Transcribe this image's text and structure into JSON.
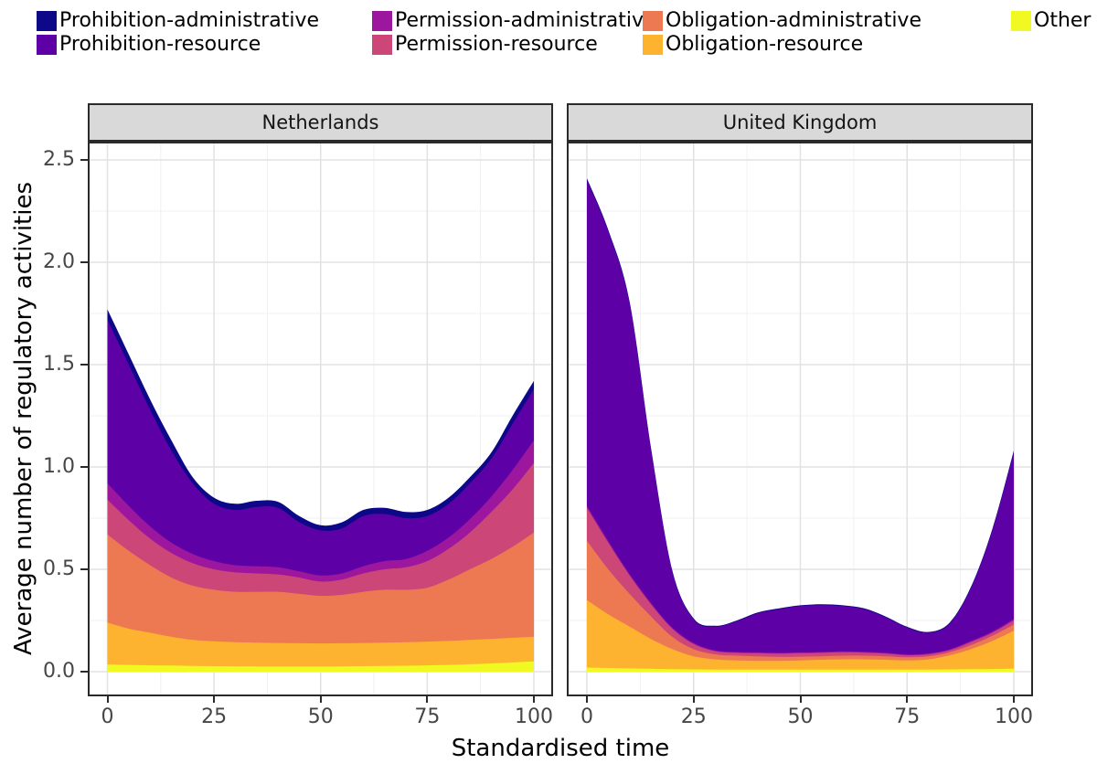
{
  "colors": {
    "Prohibition-administrative": "#0d0887",
    "Prohibition-resource": "#5d01a6",
    "Permission-administrative": "#9c179e",
    "Permission-resource": "#cc4678",
    "Obligation-administrative": "#ed7953",
    "Obligation-resource": "#fdb32f",
    "Other": "#f0f921"
  },
  "legend": {
    "rows": [
      [
        "Prohibition-administrative",
        "Permission-administrative",
        "Obligation-administrative",
        "Other"
      ],
      [
        "Prohibition-resource",
        "Permission-resource",
        "Obligation-resource"
      ]
    ]
  },
  "axes": {
    "x": {
      "title": "Standardised time",
      "range": [
        0,
        100
      ],
      "ticks": [
        {
          "value": 0,
          "label": "0"
        },
        {
          "value": 25,
          "label": "25"
        },
        {
          "value": 50,
          "label": "50"
        },
        {
          "value": 75,
          "label": "75"
        },
        {
          "value": 100,
          "label": "100"
        }
      ],
      "minor": [
        12.5,
        37.5,
        62.5,
        87.5
      ]
    },
    "y": {
      "title": "Average number of regulatory activities",
      "range": [
        0,
        2.59
      ],
      "ticks": [
        {
          "value": 0.0,
          "label": "0.0"
        },
        {
          "value": 0.5,
          "label": "0.5"
        },
        {
          "value": 1.0,
          "label": "1.0"
        },
        {
          "value": 1.5,
          "label": "1.5"
        },
        {
          "value": 2.0,
          "label": "2.0"
        },
        {
          "value": 2.5,
          "label": "2.5"
        }
      ],
      "minor": [
        0.25,
        0.75,
        1.25,
        1.75,
        2.25
      ]
    }
  },
  "chart_data": {
    "type": "area",
    "stacked": true,
    "grid": true,
    "legend_position": "top",
    "x": [
      0,
      5,
      10,
      15,
      20,
      25,
      30,
      35,
      40,
      45,
      50,
      55,
      60,
      65,
      70,
      75,
      80,
      85,
      90,
      95,
      100
    ],
    "stack_order_bottom_to_top": [
      "Other",
      "Obligation-resource",
      "Obligation-administrative",
      "Permission-resource",
      "Permission-administrative",
      "Prohibition-resource",
      "Prohibition-administrative"
    ],
    "facets": [
      {
        "name": "Netherlands",
        "series": [
          {
            "name": "Other",
            "values": [
              0.035,
              0.033,
              0.031,
              0.03,
              0.028,
              0.027,
              0.026,
              0.026,
              0.025,
              0.025,
              0.025,
              0.026,
              0.027,
              0.028,
              0.029,
              0.031,
              0.033,
              0.036,
              0.04,
              0.045,
              0.05
            ]
          },
          {
            "name": "Obligation-resource",
            "values": [
              0.205,
              0.177,
              0.159,
              0.14,
              0.127,
              0.121,
              0.118,
              0.116,
              0.115,
              0.114,
              0.113,
              0.113,
              0.113,
              0.114,
              0.115,
              0.116,
              0.117,
              0.119,
              0.12,
              0.12,
              0.12
            ]
          },
          {
            "name": "Obligation-administrative",
            "values": [
              0.43,
              0.38,
              0.33,
              0.29,
              0.265,
              0.252,
              0.246,
              0.248,
              0.25,
              0.241,
              0.232,
              0.236,
              0.25,
              0.258,
              0.256,
              0.263,
              0.3,
              0.345,
              0.39,
              0.445,
              0.51
            ]
          },
          {
            "name": "Permission-resource",
            "values": [
              0.17,
              0.15,
              0.13,
              0.12,
              0.11,
              0.1,
              0.095,
              0.09,
              0.085,
              0.08,
              0.07,
              0.075,
              0.09,
              0.1,
              0.11,
              0.13,
              0.15,
              0.18,
              0.23,
              0.28,
              0.34
            ]
          },
          {
            "name": "Permission-administrative",
            "values": [
              0.08,
              0.07,
              0.06,
              0.05,
              0.045,
              0.04,
              0.035,
              0.035,
              0.035,
              0.03,
              0.03,
              0.03,
              0.035,
              0.04,
              0.04,
              0.05,
              0.055,
              0.065,
              0.075,
              0.095,
              0.11
            ]
          },
          {
            "name": "Prohibition-resource",
            "values": [
              0.8,
              0.69,
              0.57,
              0.45,
              0.345,
              0.28,
              0.27,
              0.29,
              0.29,
              0.24,
              0.22,
              0.22,
              0.245,
              0.23,
              0.2,
              0.17,
              0.165,
              0.175,
              0.185,
              0.225,
              0.25
            ]
          },
          {
            "name": "Prohibition-administrative",
            "values": [
              0.05,
              0.05,
              0.05,
              0.05,
              0.03,
              0.03,
              0.03,
              0.03,
              0.03,
              0.03,
              0.025,
              0.03,
              0.03,
              0.03,
              0.03,
              0.03,
              0.03,
              0.03,
              0.03,
              0.04,
              0.04
            ]
          }
        ]
      },
      {
        "name": "United Kingdom",
        "series": [
          {
            "name": "Other",
            "values": [
              0.02,
              0.018,
              0.016,
              0.014,
              0.012,
              0.011,
              0.01,
              0.01,
              0.01,
              0.01,
              0.01,
              0.01,
              0.01,
              0.01,
              0.01,
              0.01,
              0.01,
              0.011,
              0.012,
              0.013,
              0.015
            ]
          },
          {
            "name": "Obligation-resource",
            "values": [
              0.33,
              0.262,
              0.204,
              0.146,
              0.098,
              0.064,
              0.05,
              0.045,
              0.043,
              0.043,
              0.045,
              0.048,
              0.05,
              0.05,
              0.048,
              0.045,
              0.05,
              0.069,
              0.098,
              0.137,
              0.185
            ]
          },
          {
            "name": "Obligation-administrative",
            "values": [
              0.29,
              0.22,
              0.16,
              0.11,
              0.06,
              0.035,
              0.025,
              0.023,
              0.022,
              0.019,
              0.018,
              0.017,
              0.018,
              0.018,
              0.017,
              0.015,
              0.015,
              0.015,
              0.02,
              0.025,
              0.03
            ]
          },
          {
            "name": "Permission-resource",
            "values": [
              0.16,
              0.13,
              0.09,
              0.06,
              0.04,
              0.025,
              0.015,
              0.014,
              0.015,
              0.016,
              0.017,
              0.017,
              0.017,
              0.015,
              0.013,
              0.01,
              0.01,
              0.01,
              0.015,
              0.015,
              0.02
            ]
          },
          {
            "name": "Permission-administrative",
            "values": [
              0.01,
              0.008,
              0.007,
              0.006,
              0.005,
              0.005,
              0.004,
              0.004,
              0.004,
              0.004,
              0.004,
              0.004,
              0.004,
              0.004,
              0.004,
              0.004,
              0.004,
              0.004,
              0.005,
              0.006,
              0.007
            ]
          },
          {
            "name": "Prohibition-resource",
            "values": [
              1.59,
              1.512,
              1.323,
              0.754,
              0.275,
              0.115,
              0.116,
              0.149,
              0.191,
              0.213,
              0.226,
              0.229,
              0.221,
              0.208,
              0.173,
              0.131,
              0.101,
              0.126,
              0.26,
              0.494,
              0.813
            ]
          },
          {
            "name": "Prohibition-administrative",
            "values": [
              0.01,
              0.008,
              0.008,
              0.006,
              0.005,
              0.005,
              0.004,
              0.004,
              0.004,
              0.004,
              0.004,
              0.004,
              0.004,
              0.004,
              0.004,
              0.004,
              0.004,
              0.005,
              0.006,
              0.008,
              0.01
            ]
          }
        ]
      }
    ]
  }
}
